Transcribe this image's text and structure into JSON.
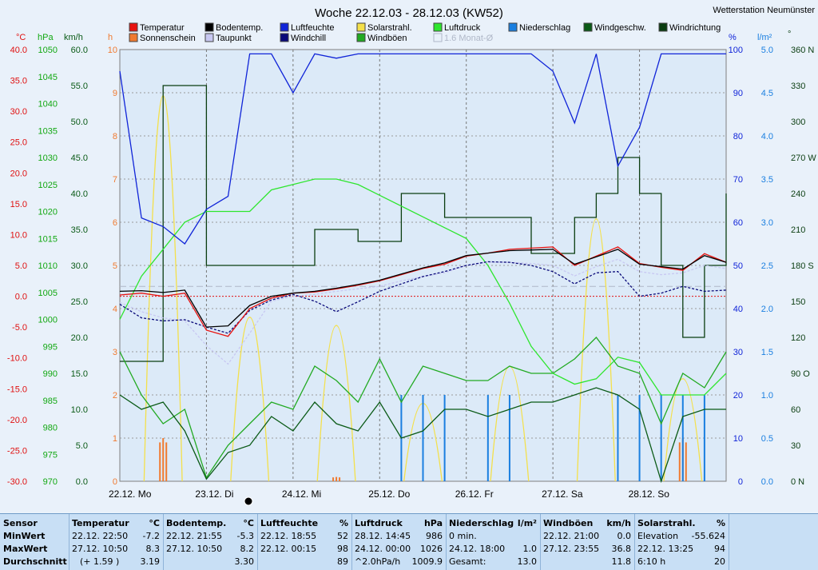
{
  "title": "Woche 22.12.03 - 28.12.03 (KW52)",
  "station": "Wetterstation Neumünster",
  "axes": {
    "temp_unit": "°C",
    "pressure_unit": "hPa",
    "wind_unit": "km/h",
    "sun_unit": "h",
    "humidity_unit": "%",
    "rain_unit": "l/m²",
    "dir_unit": "°",
    "temp_ticks": [
      "40.0",
      "35.0",
      "30.0",
      "25.0",
      "20.0",
      "15.0",
      "10.0",
      "5.0",
      "0.0",
      "-5.0",
      "-10.0",
      "-15.0",
      "-20.0",
      "-25.0",
      "-30.0"
    ],
    "pressure_ticks": [
      "1050",
      "1045",
      "1040",
      "1035",
      "1030",
      "1025",
      "1020",
      "1015",
      "1010",
      "1005",
      "1000",
      "995",
      "990",
      "985",
      "980",
      "975",
      "970"
    ],
    "wind_ticks": [
      "60.0",
      "55.0",
      "50.0",
      "45.0",
      "40.0",
      "35.0",
      "30.0",
      "25.0",
      "20.0",
      "15.0",
      "10.0",
      "5.0",
      "0.0"
    ],
    "sun_ticks": [
      "10",
      "9",
      "8",
      "7",
      "6",
      "5",
      "4",
      "3",
      "2",
      "1",
      "0"
    ],
    "humidity_ticks": [
      "100",
      "90",
      "80",
      "70",
      "60",
      "50",
      "40",
      "30",
      "20",
      "10",
      "0"
    ],
    "rain_ticks": [
      "5.0",
      "4.5",
      "4.0",
      "3.5",
      "3.0",
      "2.5",
      "2.0",
      "1.5",
      "1.0",
      "0.5",
      "0.0"
    ],
    "dir_ticks": [
      "360 N",
      "330",
      "300",
      "270 W",
      "240",
      "210",
      "180 S",
      "150",
      "120",
      "90 O",
      "60",
      "30",
      "0 N"
    ],
    "day_labels": [
      "22.12. Mo",
      "23.12. Di",
      "24.12. Mi",
      "25.12. Do",
      "26.12. Fr",
      "27.12. Sa",
      "28.12. So"
    ]
  },
  "legend": [
    {
      "label": "Temperatur",
      "color": "#e8120f"
    },
    {
      "label": "Sonnenschein",
      "color": "#f07a30"
    },
    {
      "label": "Bodentemp.",
      "color": "#000000"
    },
    {
      "label": "Taupunkt",
      "color": "#c8c8f2"
    },
    {
      "label": "Luftfeuchte",
      "color": "#1024d8"
    },
    {
      "label": "Windchill",
      "color": "#0a0a7a"
    },
    {
      "label": "Solarstrahl.",
      "color": "#f4e04a"
    },
    {
      "label": "Windböen",
      "color": "#22aa22"
    },
    {
      "label": "Luftdruck",
      "color": "#2ee62e"
    },
    {
      "label": "1.6 Monat-Ø",
      "color": "#b0b8c8"
    },
    {
      "label": "Niederschlag",
      "color": "#1a7fe0"
    },
    {
      "label": "Windgeschw.",
      "color": "#0a5a16"
    },
    {
      "label": "Windrichtung",
      "color": "#0a3d10"
    }
  ],
  "chart_data": {
    "type": "line",
    "x": [
      "22.12. 00:00",
      "22.12. 06:00",
      "22.12. 12:00",
      "22.12. 18:00",
      "23.12. 00:00",
      "23.12. 06:00",
      "23.12. 12:00",
      "23.12. 18:00",
      "24.12. 00:00",
      "24.12. 06:00",
      "24.12. 12:00",
      "24.12. 18:00",
      "25.12. 00:00",
      "25.12. 06:00",
      "25.12. 12:00",
      "25.12. 18:00",
      "26.12. 00:00",
      "26.12. 06:00",
      "26.12. 12:00",
      "26.12. 18:00",
      "27.12. 00:00",
      "27.12. 06:00",
      "27.12. 12:00",
      "27.12. 18:00",
      "28.12. 00:00",
      "28.12. 06:00",
      "28.12. 12:00",
      "28.12. 18:00",
      "29.12. 00:00"
    ],
    "series": [
      {
        "name": "Temperatur",
        "unit": "°C",
        "values": [
          0.2,
          0.5,
          0.0,
          0.5,
          -5.5,
          -6.5,
          -2.0,
          -0.3,
          0.5,
          0.7,
          1.2,
          1.8,
          2.5,
          3.5,
          4.5,
          5.2,
          6.5,
          7.0,
          7.6,
          7.8,
          8.0,
          5.0,
          6.5,
          8.0,
          5.3,
          4.7,
          4.2,
          6.9,
          5.5
        ]
      },
      {
        "name": "Bodentemp.",
        "unit": "°C",
        "values": [
          0.8,
          0.9,
          0.6,
          1.0,
          -5.0,
          -4.8,
          -1.5,
          0.0,
          0.5,
          0.8,
          1.3,
          1.9,
          2.6,
          3.6,
          4.6,
          5.4,
          6.6,
          7.0,
          7.4,
          7.5,
          7.6,
          5.2,
          6.4,
          7.6,
          5.2,
          4.8,
          4.4,
          6.6,
          5.5
        ]
      },
      {
        "name": "Taupunkt",
        "unit": "°C",
        "values": [
          -1.0,
          -2.5,
          -3.5,
          -4.0,
          -8.0,
          -11.0,
          -6.0,
          -0.8,
          0.0,
          0.3,
          0.8,
          1.2,
          1.6,
          2.5,
          3.2,
          3.8,
          5.0,
          5.5,
          5.5,
          5.3,
          5.0,
          3.3,
          4.8,
          6.0,
          4.0,
          3.5,
          3.8,
          5.0,
          4.5
        ]
      },
      {
        "name": "Windchill",
        "unit": "°C",
        "values": [
          -1.3,
          -3.5,
          -4.0,
          -3.8,
          -5.0,
          -6.0,
          -2.3,
          -0.6,
          0.3,
          -0.8,
          -2.5,
          -0.9,
          0.8,
          2.0,
          3.2,
          4.0,
          5.0,
          5.6,
          5.5,
          5.0,
          4.0,
          2.0,
          3.8,
          4.0,
          0.0,
          0.5,
          1.6,
          0.8,
          1.0
        ]
      },
      {
        "name": "Luftfeuchte",
        "unit": "%",
        "values": [
          95,
          61,
          59,
          55,
          63,
          66,
          99,
          99,
          90,
          99,
          98,
          99,
          99,
          99,
          99,
          99,
          99,
          99,
          99,
          99,
          95,
          83,
          99,
          73,
          82,
          99,
          99,
          99,
          99
        ]
      },
      {
        "name": "Luftdruck",
        "unit": "hPa",
        "values": [
          1000,
          1008,
          1013,
          1018,
          1020,
          1020,
          1020,
          1024,
          1025,
          1026,
          1026,
          1025,
          1023,
          1021,
          1019,
          1017,
          1015,
          1010,
          1003,
          995,
          990,
          988,
          989,
          993,
          992,
          986,
          986,
          986,
          990
        ]
      },
      {
        "name": "Windböen",
        "unit": "km/h",
        "values": [
          18,
          12,
          8,
          10,
          0.5,
          5,
          8,
          11,
          10,
          16,
          14,
          11,
          17,
          11,
          16,
          15,
          14,
          14,
          16,
          15,
          15,
          17,
          20,
          16,
          15,
          8,
          15,
          13,
          18
        ]
      },
      {
        "name": "Windgeschw.",
        "unit": "km/h",
        "values": [
          12,
          10,
          11,
          7,
          0.3,
          4,
          5,
          9,
          7,
          11,
          8,
          7,
          11,
          6,
          7,
          10,
          10,
          9,
          10,
          11,
          11,
          12,
          13,
          12,
          10,
          0,
          9,
          10,
          10
        ]
      },
      {
        "name": "Windrichtung",
        "unit": "°",
        "values": [
          100,
          100,
          330,
          330,
          180,
          180,
          180,
          180,
          180,
          210,
          210,
          200,
          200,
          240,
          240,
          220,
          220,
          220,
          220,
          190,
          190,
          220,
          240,
          270,
          240,
          180,
          120,
          180,
          240
        ]
      },
      {
        "name": "Solarstrahl.",
        "unit": "%",
        "values": [
          0,
          0,
          94,
          0,
          0,
          0,
          40,
          0,
          0,
          0,
          38,
          0,
          0,
          0,
          19,
          0,
          0,
          0,
          28,
          0,
          0,
          0,
          64,
          0,
          0,
          0,
          25,
          0,
          0
        ]
      },
      {
        "name": "Sonnenschein",
        "unit": "h",
        "values": [
          0,
          0,
          1.0,
          0,
          0,
          0,
          0,
          0,
          0,
          0,
          0.1,
          0,
          0,
          0,
          0,
          0,
          0,
          0,
          0,
          0,
          0,
          0,
          0,
          0,
          0,
          0,
          1.0,
          0,
          0
        ]
      },
      {
        "name": "Niederschlag",
        "unit": "l/m²",
        "values": [
          0,
          0,
          0,
          0,
          0,
          0,
          0,
          0,
          0,
          0,
          0,
          0,
          0,
          1.0,
          1.0,
          1.0,
          0,
          1.0,
          1.0,
          0,
          0,
          0,
          0,
          1.0,
          1.0,
          1.0,
          1.0,
          1.0,
          0
        ]
      }
    ],
    "reference": {
      "name": "1.6 Monat-Ø",
      "unit": "°C",
      "value": 1.6
    },
    "ylim_temp": [
      -30,
      40
    ],
    "ylim_pressure": [
      970,
      1050
    ],
    "ylim_wind": [
      0,
      60
    ],
    "ylim_sun": [
      0,
      10
    ],
    "ylim_humidity": [
      0,
      100
    ],
    "ylim_rain": [
      0,
      5
    ],
    "ylim_dir": [
      0,
      360
    ],
    "grid": true,
    "legend_position": "top"
  },
  "stats": {
    "header": {
      "sensor": "Sensor",
      "minwert": "MinWert",
      "maxwert": "MaxWert",
      "durchschnitt": "Durchschnitt"
    },
    "columns": [
      {
        "name": "Temperatur",
        "unit": "°C",
        "min_time": "22.12.  22:50",
        "min_val": "-7.2",
        "max_time": "27.12.  10:50",
        "max_val": "8.3",
        "avg_note": "(+ 1.59 )",
        "avg_val": "3.19"
      },
      {
        "name": "Bodentemp.",
        "unit": "°C",
        "min_time": "22.12.  21:55",
        "min_val": "-5.3",
        "max_time": "27.12.  10:50",
        "max_val": "8.2",
        "avg_note": "",
        "avg_val": "3.30"
      },
      {
        "name": "Luftfeuchte",
        "unit": "%",
        "min_time": "22.12.  18:55",
        "min_val": "52",
        "max_time": "22.12.  00:15",
        "max_val": "98",
        "avg_note": "",
        "avg_val": "89"
      },
      {
        "name": "Luftdruck",
        "unit": "hPa",
        "min_time": "28.12.  14:45",
        "min_val": "986",
        "max_time": "24.12.  00:00",
        "max_val": "1026",
        "avg_note": "^2.0hPa/h",
        "avg_val": "1009.9"
      },
      {
        "name": "Niederschlag",
        "unit": "l/m²",
        "min_time": "0 min.",
        "min_val": "",
        "max_time": "24.12.  18:00",
        "max_val": "1.0",
        "avg_note": "Gesamt:",
        "avg_val": "13.0"
      },
      {
        "name": "Windböen",
        "unit": "km/h",
        "min_time": "22.12.  21:00",
        "min_val": "0.0",
        "max_time": "27.12.  23:55",
        "max_val": "36.8",
        "avg_note": "",
        "avg_val": "11.8"
      },
      {
        "name": "Solarstrahl.",
        "unit": "%",
        "min_time": "Elevation",
        "min_val": "-55.624",
        "max_time": "22.12.  13:25",
        "max_val": "94",
        "avg_note": "6:10 h",
        "avg_val": "20"
      }
    ]
  }
}
